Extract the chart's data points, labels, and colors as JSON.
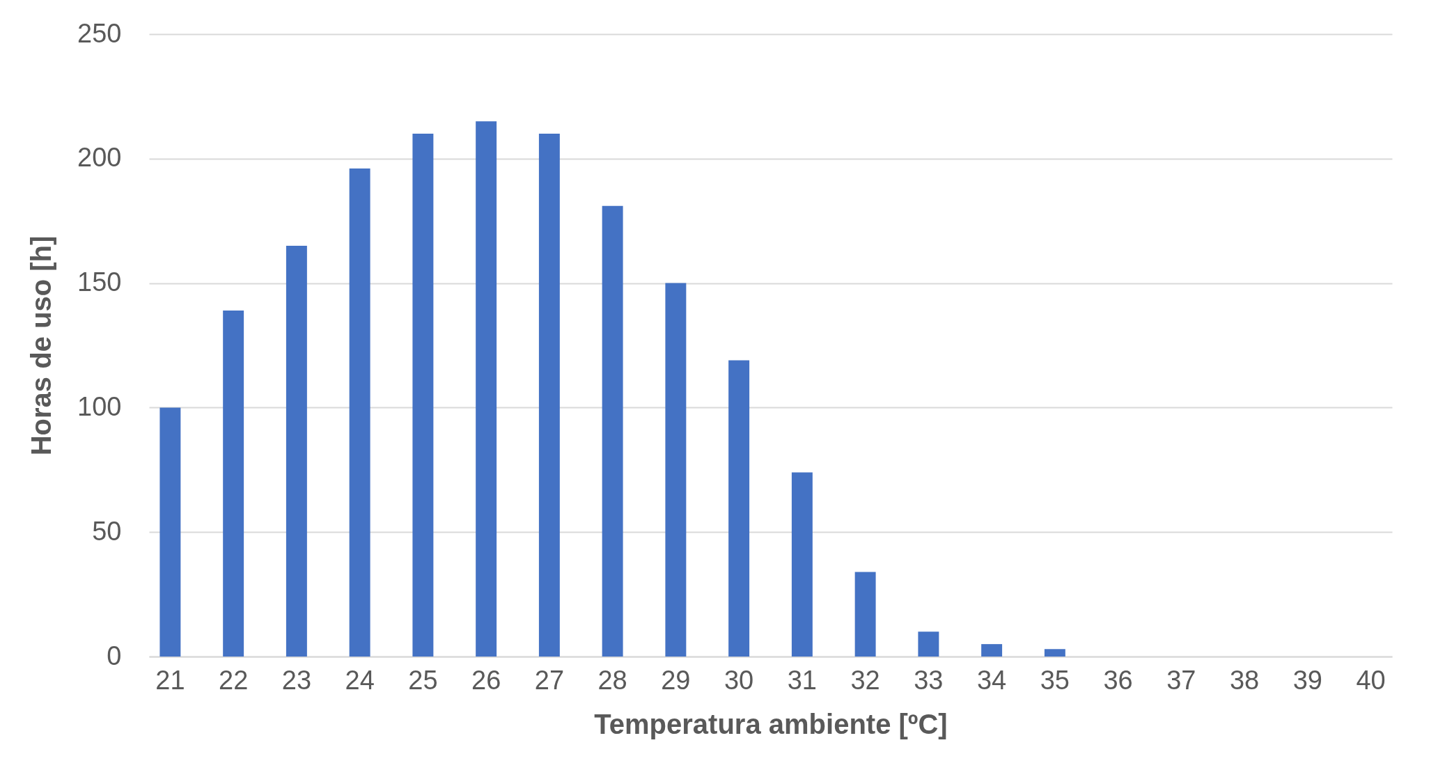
{
  "chart_data": {
    "type": "bar",
    "xlabel": "Temperatura ambiente [ºC]",
    "ylabel": "Horas de uso [h]",
    "categories": [
      "21",
      "22",
      "23",
      "24",
      "25",
      "26",
      "27",
      "28",
      "29",
      "30",
      "31",
      "32",
      "33",
      "34",
      "35",
      "36",
      "37",
      "38",
      "39",
      "40"
    ],
    "values": [
      100,
      139,
      165,
      196,
      210,
      215,
      210,
      181,
      150,
      119,
      74,
      34,
      10,
      5,
      3,
      0,
      0,
      0,
      0,
      0
    ],
    "color": "#4472c4",
    "ylim": [
      0,
      250
    ],
    "yticks": [
      0,
      50,
      100,
      150,
      200,
      250
    ],
    "grid": "y"
  }
}
